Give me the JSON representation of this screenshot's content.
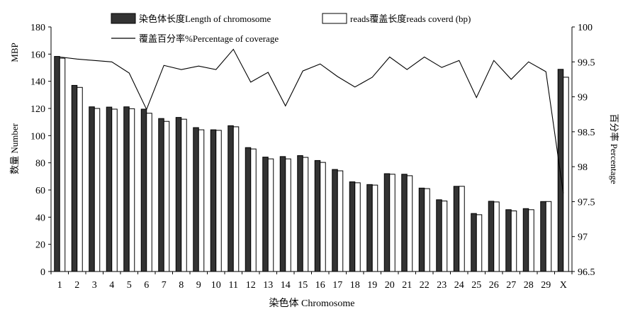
{
  "chart_data": {
    "type": "bar",
    "title": "",
    "categories": [
      "1",
      "2",
      "3",
      "4",
      "5",
      "6",
      "7",
      "8",
      "9",
      "10",
      "11",
      "12",
      "13",
      "14",
      "15",
      "16",
      "17",
      "18",
      "19",
      "20",
      "21",
      "22",
      "23",
      "24",
      "25",
      "26",
      "27",
      "28",
      "29",
      "X"
    ],
    "series": [
      {
        "name": "染色体长度Length of chromosome",
        "type": "bar",
        "axis": "left",
        "color": "#333333",
        "values": [
          158.3,
          137.0,
          121.2,
          121.0,
          121.2,
          119.5,
          112.6,
          113.4,
          105.9,
          104.3,
          107.3,
          91.2,
          84.2,
          84.6,
          85.3,
          81.7,
          75.1,
          66.0,
          64.0,
          72.0,
          71.6,
          61.4,
          52.8,
          62.7,
          42.7,
          51.7,
          45.5,
          46.3,
          51.5,
          148.8
        ]
      },
      {
        "name": "reads覆盖长度reads coverd (bp)",
        "type": "bar",
        "axis": "left",
        "color": "#ffffff",
        "values": [
          157.0,
          135.5,
          120.0,
          119.5,
          119.8,
          116.5,
          110.5,
          112.1,
          104.3,
          103.9,
          106.5,
          90.2,
          82.9,
          82.9,
          84.0,
          80.3,
          74.1,
          65.3,
          63.6,
          71.6,
          70.5,
          61.0,
          51.9,
          62.7,
          41.8,
          51.2,
          44.6,
          45.5,
          51.5,
          143.0
        ]
      },
      {
        "name": "覆盖百分率%Percentage of coverage",
        "type": "line",
        "axis": "right",
        "color": "#000000",
        "values": [
          99.57,
          99.54,
          99.52,
          99.5,
          99.34,
          98.82,
          99.45,
          99.39,
          99.44,
          99.39,
          99.68,
          99.21,
          99.35,
          98.87,
          99.37,
          99.47,
          99.29,
          99.14,
          99.28,
          99.57,
          99.39,
          99.57,
          99.42,
          99.52,
          98.99,
          99.52,
          99.25,
          99.5,
          99.36,
          97.62
        ]
      }
    ],
    "xlabel": "染色体 Chromosome",
    "ylabel_left_top": "MBP",
    "ylabel_left": "数量 Number",
    "ylabel_right": "百分率 Percentage",
    "ylim_left": [
      0,
      180
    ],
    "yticks_left": [
      "0",
      "20",
      "40",
      "60",
      "80",
      "100",
      "120",
      "140",
      "160",
      "180"
    ],
    "ylim_right": [
      96.5,
      100
    ],
    "yticks_right": [
      "96.5",
      "97",
      "97.5",
      "98",
      "98.5",
      "99",
      "99.5",
      "100"
    ],
    "grid": false,
    "legend_position": "top-center"
  }
}
